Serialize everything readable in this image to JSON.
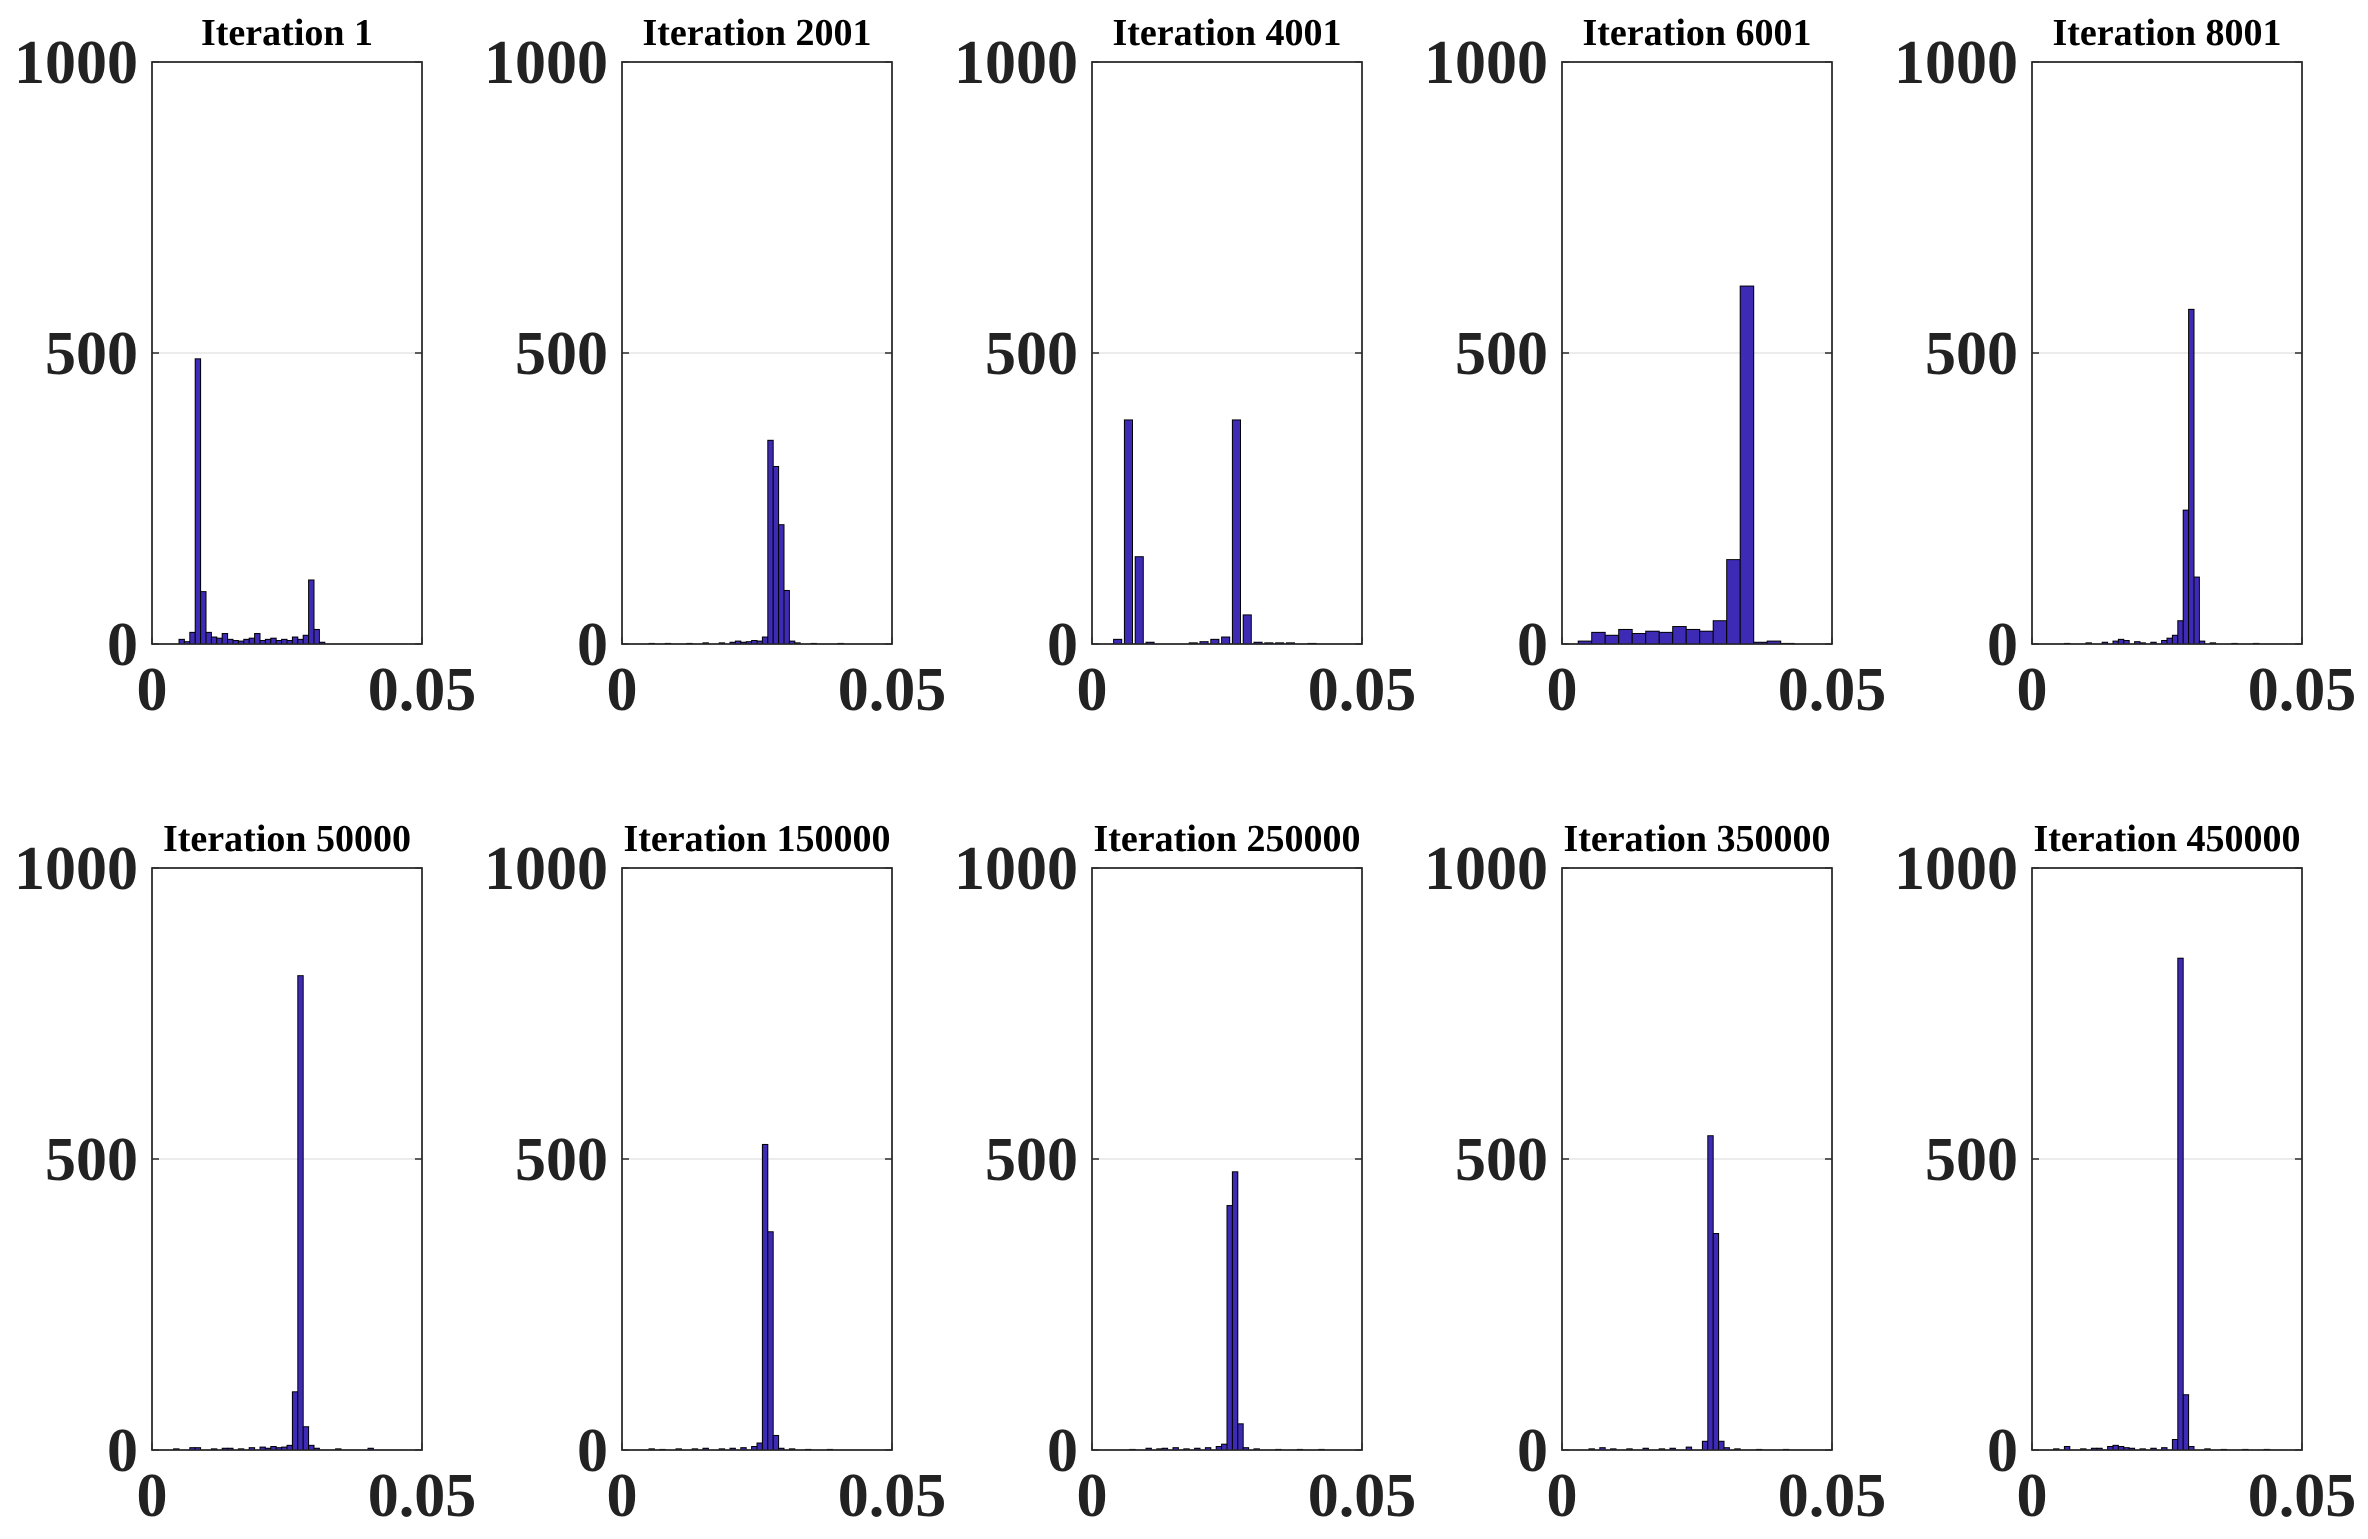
{
  "figure": {
    "bar_color": "#3d2bb5",
    "grid": "horizontal"
  },
  "chart_data": [
    {
      "type": "bar",
      "title": "Iteration 1",
      "xlabel": "",
      "ylabel": "",
      "xlim": [
        0,
        0.05
      ],
      "ylim": [
        0,
        1000
      ],
      "xticks": [
        "0",
        "0.05"
      ],
      "yticks": [
        "0",
        "500",
        "1000"
      ],
      "bin_width": 0.001,
      "bins": [
        {
          "x": 0.005,
          "y": 8
        },
        {
          "x": 0.006,
          "y": 4
        },
        {
          "x": 0.007,
          "y": 20
        },
        {
          "x": 0.008,
          "y": 490
        },
        {
          "x": 0.009,
          "y": 90
        },
        {
          "x": 0.01,
          "y": 20
        },
        {
          "x": 0.011,
          "y": 12
        },
        {
          "x": 0.012,
          "y": 10
        },
        {
          "x": 0.013,
          "y": 18
        },
        {
          "x": 0.014,
          "y": 8
        },
        {
          "x": 0.015,
          "y": 6
        },
        {
          "x": 0.016,
          "y": 5
        },
        {
          "x": 0.017,
          "y": 8
        },
        {
          "x": 0.018,
          "y": 10
        },
        {
          "x": 0.019,
          "y": 18
        },
        {
          "x": 0.02,
          "y": 6
        },
        {
          "x": 0.021,
          "y": 8
        },
        {
          "x": 0.022,
          "y": 10
        },
        {
          "x": 0.023,
          "y": 6
        },
        {
          "x": 0.024,
          "y": 8
        },
        {
          "x": 0.025,
          "y": 6
        },
        {
          "x": 0.026,
          "y": 12
        },
        {
          "x": 0.027,
          "y": 8
        },
        {
          "x": 0.028,
          "y": 15
        },
        {
          "x": 0.029,
          "y": 110
        },
        {
          "x": 0.03,
          "y": 25
        },
        {
          "x": 0.031,
          "y": 3
        }
      ]
    },
    {
      "type": "bar",
      "title": "Iteration 2001",
      "xlabel": "",
      "ylabel": "",
      "xlim": [
        0,
        0.05
      ],
      "ylim": [
        0,
        1000
      ],
      "xticks": [
        "0",
        "0.05"
      ],
      "yticks": [
        "0",
        "500",
        "1000"
      ],
      "bin_width": 0.001,
      "bins": [
        {
          "x": 0.005,
          "y": 1
        },
        {
          "x": 0.008,
          "y": 1
        },
        {
          "x": 0.012,
          "y": 1
        },
        {
          "x": 0.015,
          "y": 2
        },
        {
          "x": 0.018,
          "y": 2
        },
        {
          "x": 0.02,
          "y": 3
        },
        {
          "x": 0.021,
          "y": 5
        },
        {
          "x": 0.022,
          "y": 3
        },
        {
          "x": 0.023,
          "y": 4
        },
        {
          "x": 0.024,
          "y": 6
        },
        {
          "x": 0.025,
          "y": 5
        },
        {
          "x": 0.026,
          "y": 12
        },
        {
          "x": 0.027,
          "y": 350
        },
        {
          "x": 0.028,
          "y": 305
        },
        {
          "x": 0.029,
          "y": 205
        },
        {
          "x": 0.03,
          "y": 92
        },
        {
          "x": 0.031,
          "y": 5
        },
        {
          "x": 0.032,
          "y": 2
        },
        {
          "x": 0.035,
          "y": 1
        },
        {
          "x": 0.04,
          "y": 1
        }
      ]
    },
    {
      "type": "bar",
      "title": "Iteration 4001",
      "xlabel": "",
      "ylabel": "",
      "xlim": [
        0,
        0.05
      ],
      "ylim": [
        0,
        1000
      ],
      "xticks": [
        "0",
        "0.05"
      ],
      "yticks": [
        "0",
        "500",
        "1000"
      ],
      "bin_width": 0.0015,
      "bins": [
        {
          "x": 0.004,
          "y": 8
        },
        {
          "x": 0.006,
          "y": 385
        },
        {
          "x": 0.008,
          "y": 150
        },
        {
          "x": 0.01,
          "y": 3
        },
        {
          "x": 0.018,
          "y": 2
        },
        {
          "x": 0.02,
          "y": 4
        },
        {
          "x": 0.022,
          "y": 8
        },
        {
          "x": 0.024,
          "y": 12
        },
        {
          "x": 0.026,
          "y": 385
        },
        {
          "x": 0.028,
          "y": 50
        },
        {
          "x": 0.03,
          "y": 3
        },
        {
          "x": 0.032,
          "y": 2
        },
        {
          "x": 0.034,
          "y": 2
        },
        {
          "x": 0.036,
          "y": 2
        },
        {
          "x": 0.04,
          "y": 1
        }
      ]
    },
    {
      "type": "bar",
      "title": "Iteration 6001",
      "xlabel": "",
      "ylabel": "",
      "xlim": [
        0,
        0.05
      ],
      "ylim": [
        0,
        1000
      ],
      "xticks": [
        "0",
        "0.05"
      ],
      "yticks": [
        "0",
        "500",
        "1000"
      ],
      "bin_width": 0.0025,
      "bins": [
        {
          "x": 0.003,
          "y": 5
        },
        {
          "x": 0.0055,
          "y": 20
        },
        {
          "x": 0.008,
          "y": 15
        },
        {
          "x": 0.0105,
          "y": 25
        },
        {
          "x": 0.013,
          "y": 18
        },
        {
          "x": 0.0155,
          "y": 22
        },
        {
          "x": 0.018,
          "y": 20
        },
        {
          "x": 0.0205,
          "y": 30
        },
        {
          "x": 0.023,
          "y": 25
        },
        {
          "x": 0.0255,
          "y": 22
        },
        {
          "x": 0.028,
          "y": 40
        },
        {
          "x": 0.0305,
          "y": 145
        },
        {
          "x": 0.033,
          "y": 615
        },
        {
          "x": 0.0355,
          "y": 3
        },
        {
          "x": 0.038,
          "y": 5
        },
        {
          "x": 0.0405,
          "y": 1
        }
      ]
    },
    {
      "type": "bar",
      "title": "Iteration 8001",
      "xlabel": "",
      "ylabel": "",
      "xlim": [
        0,
        0.05
      ],
      "ylim": [
        0,
        1000
      ],
      "xticks": [
        "0",
        "0.05"
      ],
      "yticks": [
        "0",
        "500",
        "1000"
      ],
      "bin_width": 0.001,
      "bins": [
        {
          "x": 0.006,
          "y": 1
        },
        {
          "x": 0.01,
          "y": 2
        },
        {
          "x": 0.013,
          "y": 3
        },
        {
          "x": 0.015,
          "y": 5
        },
        {
          "x": 0.016,
          "y": 8
        },
        {
          "x": 0.017,
          "y": 6
        },
        {
          "x": 0.019,
          "y": 4
        },
        {
          "x": 0.02,
          "y": 2
        },
        {
          "x": 0.022,
          "y": 3
        },
        {
          "x": 0.024,
          "y": 6
        },
        {
          "x": 0.025,
          "y": 10
        },
        {
          "x": 0.026,
          "y": 15
        },
        {
          "x": 0.027,
          "y": 40
        },
        {
          "x": 0.028,
          "y": 230
        },
        {
          "x": 0.029,
          "y": 575
        },
        {
          "x": 0.03,
          "y": 115
        },
        {
          "x": 0.031,
          "y": 5
        },
        {
          "x": 0.033,
          "y": 2
        },
        {
          "x": 0.037,
          "y": 1
        },
        {
          "x": 0.041,
          "y": 1
        }
      ]
    },
    {
      "type": "bar",
      "title": "Iteration 50000",
      "xlabel": "",
      "ylabel": "",
      "xlim": [
        0,
        0.05
      ],
      "ylim": [
        0,
        1000
      ],
      "xticks": [
        "0",
        "0.05"
      ],
      "yticks": [
        "0",
        "500",
        "1000"
      ],
      "bin_width": 0.001,
      "bins": [
        {
          "x": 0.004,
          "y": 2
        },
        {
          "x": 0.007,
          "y": 4
        },
        {
          "x": 0.008,
          "y": 4
        },
        {
          "x": 0.011,
          "y": 2
        },
        {
          "x": 0.013,
          "y": 3
        },
        {
          "x": 0.014,
          "y": 3
        },
        {
          "x": 0.016,
          "y": 2
        },
        {
          "x": 0.018,
          "y": 4
        },
        {
          "x": 0.02,
          "y": 5
        },
        {
          "x": 0.021,
          "y": 3
        },
        {
          "x": 0.022,
          "y": 6
        },
        {
          "x": 0.023,
          "y": 4
        },
        {
          "x": 0.024,
          "y": 5
        },
        {
          "x": 0.025,
          "y": 8
        },
        {
          "x": 0.026,
          "y": 100
        },
        {
          "x": 0.027,
          "y": 815
        },
        {
          "x": 0.028,
          "y": 40
        },
        {
          "x": 0.029,
          "y": 8
        },
        {
          "x": 0.03,
          "y": 3
        },
        {
          "x": 0.034,
          "y": 2
        },
        {
          "x": 0.04,
          "y": 3
        }
      ]
    },
    {
      "type": "bar",
      "title": "Iteration 150000",
      "xlabel": "",
      "ylabel": "",
      "xlim": [
        0,
        0.05
      ],
      "ylim": [
        0,
        1000
      ],
      "xticks": [
        "0",
        "0.05"
      ],
      "yticks": [
        "0",
        "500",
        "1000"
      ],
      "bin_width": 0.001,
      "bins": [
        {
          "x": 0.005,
          "y": 2
        },
        {
          "x": 0.007,
          "y": 1
        },
        {
          "x": 0.01,
          "y": 2
        },
        {
          "x": 0.013,
          "y": 2
        },
        {
          "x": 0.015,
          "y": 3
        },
        {
          "x": 0.018,
          "y": 2
        },
        {
          "x": 0.02,
          "y": 3
        },
        {
          "x": 0.022,
          "y": 4
        },
        {
          "x": 0.024,
          "y": 6
        },
        {
          "x": 0.025,
          "y": 12
        },
        {
          "x": 0.026,
          "y": 525
        },
        {
          "x": 0.027,
          "y": 375
        },
        {
          "x": 0.028,
          "y": 25
        },
        {
          "x": 0.029,
          "y": 3
        },
        {
          "x": 0.031,
          "y": 2
        },
        {
          "x": 0.034,
          "y": 1
        },
        {
          "x": 0.038,
          "y": 1
        }
      ]
    },
    {
      "type": "bar",
      "title": "Iteration 250000",
      "xlabel": "",
      "ylabel": "",
      "xlim": [
        0,
        0.05
      ],
      "ylim": [
        0,
        1000
      ],
      "xticks": [
        "0",
        "0.05"
      ],
      "yticks": [
        "0",
        "500",
        "1000"
      ],
      "bin_width": 0.001,
      "bins": [
        {
          "x": 0.007,
          "y": 1
        },
        {
          "x": 0.01,
          "y": 3
        },
        {
          "x": 0.012,
          "y": 2
        },
        {
          "x": 0.013,
          "y": 3
        },
        {
          "x": 0.015,
          "y": 4
        },
        {
          "x": 0.017,
          "y": 2
        },
        {
          "x": 0.019,
          "y": 3
        },
        {
          "x": 0.021,
          "y": 4
        },
        {
          "x": 0.023,
          "y": 6
        },
        {
          "x": 0.024,
          "y": 10
        },
        {
          "x": 0.025,
          "y": 420
        },
        {
          "x": 0.026,
          "y": 478
        },
        {
          "x": 0.027,
          "y": 45
        },
        {
          "x": 0.028,
          "y": 4
        },
        {
          "x": 0.03,
          "y": 2
        },
        {
          "x": 0.034,
          "y": 1
        },
        {
          "x": 0.038,
          "y": 1
        },
        {
          "x": 0.042,
          "y": 1
        }
      ]
    },
    {
      "type": "bar",
      "title": "Iteration 350000",
      "xlabel": "",
      "ylabel": "",
      "xlim": [
        0,
        0.05
      ],
      "ylim": [
        0,
        1000
      ],
      "xticks": [
        "0",
        "0.05"
      ],
      "yticks": [
        "0",
        "500",
        "1000"
      ],
      "bin_width": 0.001,
      "bins": [
        {
          "x": 0.005,
          "y": 2
        },
        {
          "x": 0.007,
          "y": 4
        },
        {
          "x": 0.009,
          "y": 2
        },
        {
          "x": 0.012,
          "y": 2
        },
        {
          "x": 0.015,
          "y": 3
        },
        {
          "x": 0.018,
          "y": 2
        },
        {
          "x": 0.02,
          "y": 3
        },
        {
          "x": 0.023,
          "y": 5
        },
        {
          "x": 0.026,
          "y": 15
        },
        {
          "x": 0.027,
          "y": 540
        },
        {
          "x": 0.028,
          "y": 372
        },
        {
          "x": 0.029,
          "y": 15
        },
        {
          "x": 0.03,
          "y": 4
        },
        {
          "x": 0.032,
          "y": 2
        },
        {
          "x": 0.036,
          "y": 1
        },
        {
          "x": 0.041,
          "y": 1
        }
      ]
    },
    {
      "type": "bar",
      "title": "Iteration 450000",
      "xlabel": "",
      "ylabel": "",
      "xlim": [
        0,
        0.05
      ],
      "ylim": [
        0,
        1000
      ],
      "xticks": [
        "0",
        "0.05"
      ],
      "yticks": [
        "0",
        "500",
        "1000"
      ],
      "bin_width": 0.001,
      "bins": [
        {
          "x": 0.004,
          "y": 2
        },
        {
          "x": 0.006,
          "y": 6
        },
        {
          "x": 0.009,
          "y": 2
        },
        {
          "x": 0.011,
          "y": 3
        },
        {
          "x": 0.012,
          "y": 3
        },
        {
          "x": 0.014,
          "y": 6
        },
        {
          "x": 0.015,
          "y": 8
        },
        {
          "x": 0.016,
          "y": 6
        },
        {
          "x": 0.017,
          "y": 4
        },
        {
          "x": 0.018,
          "y": 3
        },
        {
          "x": 0.02,
          "y": 2
        },
        {
          "x": 0.022,
          "y": 3
        },
        {
          "x": 0.024,
          "y": 4
        },
        {
          "x": 0.026,
          "y": 18
        },
        {
          "x": 0.027,
          "y": 845
        },
        {
          "x": 0.028,
          "y": 95
        },
        {
          "x": 0.029,
          "y": 6
        },
        {
          "x": 0.032,
          "y": 2
        },
        {
          "x": 0.035,
          "y": 1
        },
        {
          "x": 0.039,
          "y": 1
        },
        {
          "x": 0.043,
          "y": 1
        }
      ]
    }
  ]
}
